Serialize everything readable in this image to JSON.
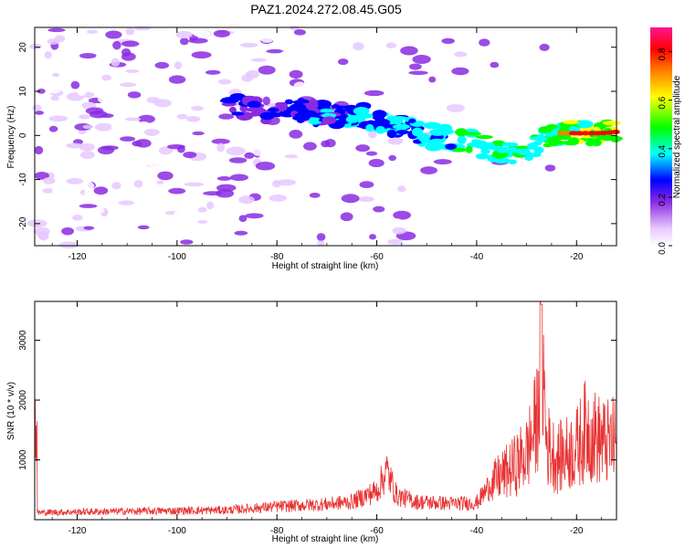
{
  "figure": {
    "title": "PAZ1.2024.272.08.45.G05"
  },
  "chart_data": [
    {
      "type": "heatmap",
      "xlabel": "Height of straight line (km)",
      "ylabel": "Frequency (Hz)",
      "xlim": [
        -128.5,
        -12
      ],
      "ylim": [
        -25,
        24.5
      ],
      "xticks": [
        -120,
        -100,
        -80,
        -60,
        -40,
        -20
      ],
      "yticks": [
        -20,
        -10,
        0,
        10,
        20
      ],
      "colorbar": {
        "label": "Normalized spectral amplitude",
        "range": [
          0,
          0.9
        ],
        "ticks": [
          "0.0",
          "0.2",
          "0.4",
          "0.6",
          "0.8"
        ],
        "colormap": [
          "#ffffff",
          "#e6c8ff",
          "#8a2be2",
          "#0000ff",
          "#00ffff",
          "#00ff00",
          "#ffff00",
          "#ff8000",
          "#ff0000",
          "#ff1493"
        ]
      },
      "ridge": {
        "description_points_x": [
          -90,
          -80,
          -70,
          -60,
          -50,
          -40,
          -35,
          -30,
          -25,
          -20,
          -15,
          -12
        ],
        "description_points_y": [
          7,
          5.5,
          5,
          4,
          0,
          -2,
          -3.5,
          -3.5,
          0.5,
          0.5,
          0.5,
          0.8
        ]
      }
    },
    {
      "type": "line",
      "xlabel": "Height of straight line (km)",
      "ylabel": "SNR (10 * v/v)",
      "xlim": [
        -128.5,
        -12
      ],
      "ylim": [
        0,
        3650
      ],
      "xticks": [
        -120,
        -100,
        -80,
        -60,
        -40,
        -20
      ],
      "yticks": [
        1000,
        2000,
        3000
      ],
      "series": [
        {
          "color": "#e83232",
          "x": [
            -128,
            -120,
            -110,
            -100,
            -90,
            -80,
            -70,
            -65,
            -60,
            -58,
            -56,
            -52,
            -45,
            -40,
            -38,
            -36,
            -33,
            -30,
            -28,
            -27,
            -26,
            -24,
            -22,
            -20,
            -18,
            -16,
            -14,
            -12
          ],
          "y": [
            120,
            130,
            140,
            150,
            160,
            220,
            260,
            300,
            480,
            820,
            400,
            300,
            270,
            280,
            500,
            800,
            1000,
            1300,
            1900,
            3600,
            1500,
            1200,
            1300,
            1400,
            1800,
            1600,
            1500,
            1550
          ]
        }
      ]
    }
  ]
}
